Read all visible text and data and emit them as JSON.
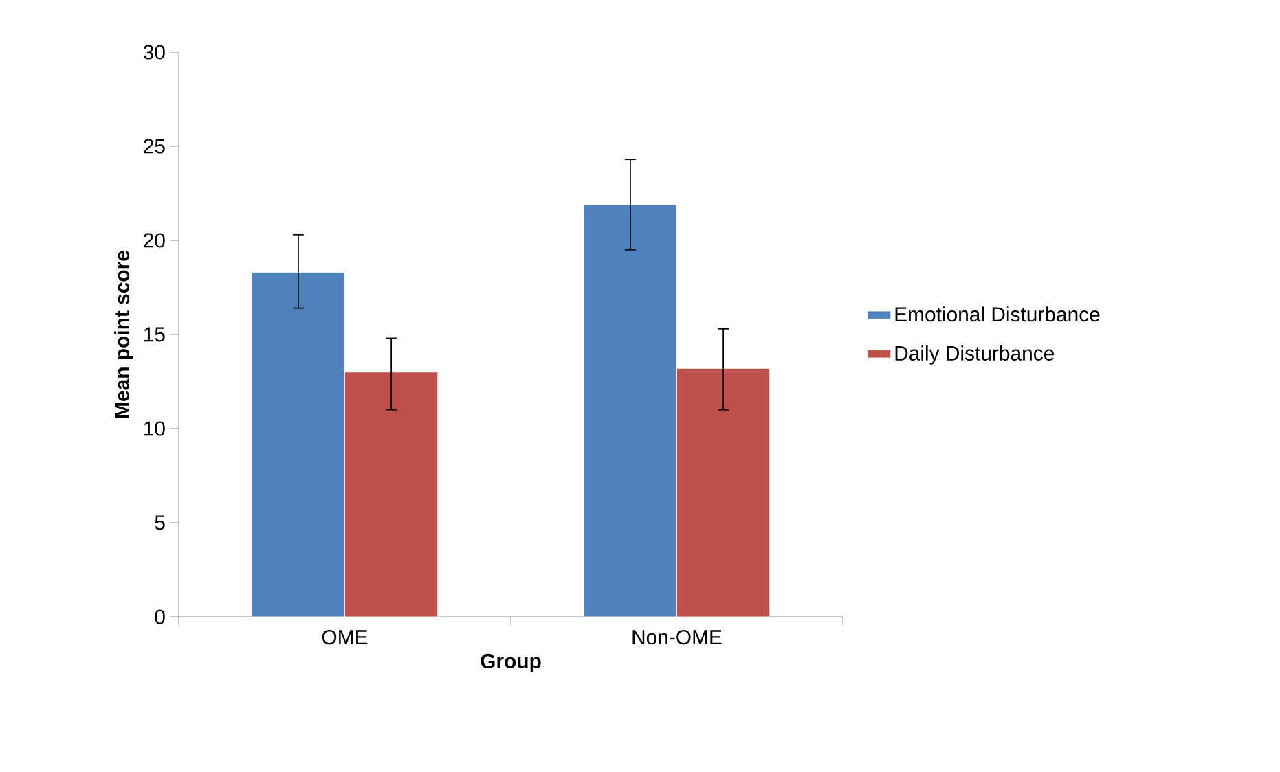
{
  "chart_data": {
    "type": "bar",
    "xlabel": "Group",
    "ylabel": "Mean point score",
    "categories": [
      "OME",
      "Non-OME"
    ],
    "series": [
      {
        "name": "Emotional Disturbance",
        "color": "#4f81bd",
        "values": [
          18.3,
          21.9
        ],
        "errors": [
          [
            16.4,
            20.3
          ],
          [
            19.5,
            24.3
          ]
        ]
      },
      {
        "name": "Daily Disturbance",
        "color": "#c0504d",
        "values": [
          13.0,
          13.2
        ],
        "errors": [
          [
            11.0,
            14.8
          ],
          [
            11.0,
            15.3
          ]
        ]
      }
    ],
    "ylim": [
      0,
      30
    ],
    "yticks": [
      0,
      5,
      10,
      15,
      20,
      25,
      30
    ],
    "legend": "right",
    "grid": false
  }
}
